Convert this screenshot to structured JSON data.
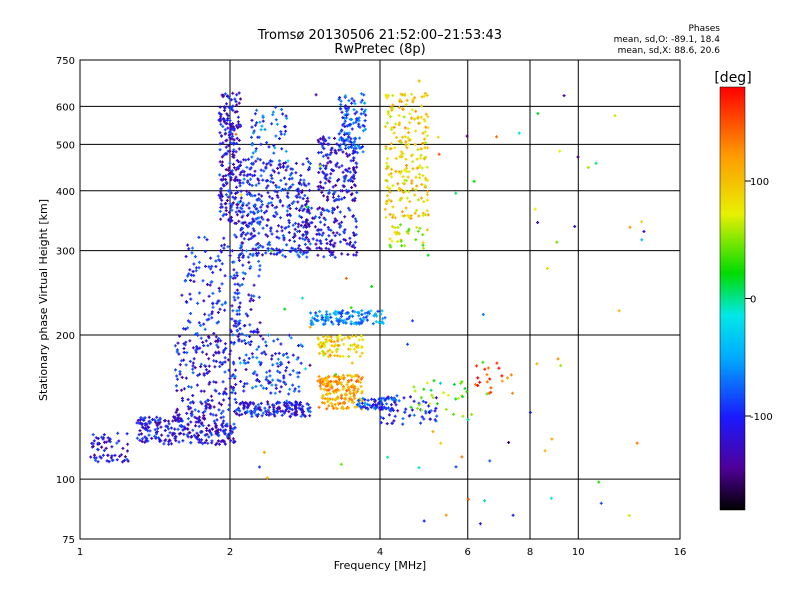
{
  "chart_data": {
    "type": "scatter",
    "title": "Tromsø 20130506 21:52:00–21:53:43",
    "subtitle": "RwPretec (8p)",
    "xlabel": "Frequency [MHz]",
    "ylabel": "Stationary phase Virtual Height [km]",
    "x_scale": "log",
    "y_scale": "log",
    "xlim": [
      1,
      16
    ],
    "ylim": [
      75,
      750
    ],
    "x_ticks": [
      1,
      2,
      4,
      6,
      8,
      10,
      16
    ],
    "y_ticks": [
      75,
      100,
      200,
      300,
      400,
      500,
      600,
      750
    ],
    "grid": true,
    "stats_header": "Phases",
    "stats_lines": [
      "mean, sd,O: -89.1, 18.4",
      "mean, sd,X: 88.6, 20.6"
    ],
    "colorbar": {
      "label": "[deg]",
      "range": [
        -180,
        180
      ],
      "ticks": [
        100,
        0,
        -100
      ],
      "colormap": "rainbow"
    },
    "point_color_note": "marker color encodes phase in degrees",
    "clusters": [
      {
        "x": [
          1.05,
          1.25
        ],
        "y": [
          108,
          125
        ],
        "phase": -110,
        "n": 60
      },
      {
        "x": [
          1.3,
          2.05
        ],
        "y": [
          118,
          135
        ],
        "phase": -110,
        "n": 260
      },
      {
        "x": [
          1.55,
          2.05
        ],
        "y": [
          135,
          200
        ],
        "phase": -105,
        "n": 180
      },
      {
        "x": [
          1.6,
          2.1
        ],
        "y": [
          200,
          320
        ],
        "phase": -100,
        "n": 120
      },
      {
        "x": [
          1.9,
          2.1
        ],
        "y": [
          340,
          640
        ],
        "phase": -110,
        "n": 230
      },
      {
        "x": [
          2.05,
          2.9
        ],
        "y": [
          135,
          145
        ],
        "phase": -105,
        "n": 160
      },
      {
        "x": [
          2.0,
          2.8
        ],
        "y": [
          150,
          200
        ],
        "phase": -90,
        "n": 130
      },
      {
        "x": [
          2.0,
          2.3
        ],
        "y": [
          200,
          360
        ],
        "phase": -100,
        "n": 90
      },
      {
        "x": [
          2.1,
          2.9
        ],
        "y": [
          290,
          470
        ],
        "phase": -100,
        "n": 360
      },
      {
        "x": [
          2.2,
          2.6
        ],
        "y": [
          470,
          600
        ],
        "phase": -80,
        "n": 50
      },
      {
        "x": [
          2.8,
          3.6
        ],
        "y": [
          290,
          370
        ],
        "phase": -110,
        "n": 140
      },
      {
        "x": [
          3.0,
          3.6
        ],
        "y": [
          380,
          520
        ],
        "phase": -110,
        "n": 170
      },
      {
        "x": [
          3.3,
          3.75
        ],
        "y": [
          480,
          640
        ],
        "phase": -80,
        "n": 110
      },
      {
        "x": [
          2.9,
          4.1
        ],
        "y": [
          210,
          225
        ],
        "phase": -60,
        "n": 120
      },
      {
        "x": [
          3.0,
          3.7
        ],
        "y": [
          180,
          200
        ],
        "phase": 90,
        "n": 80
      },
      {
        "x": [
          3.0,
          3.7
        ],
        "y": [
          140,
          165
        ],
        "phase": 110,
        "n": 180
      },
      {
        "x": [
          3.6,
          4.3
        ],
        "y": [
          140,
          148
        ],
        "phase": -90,
        "n": 60
      },
      {
        "x": [
          4.1,
          5.0
        ],
        "y": [
          350,
          640
        ],
        "phase": 90,
        "n": 220
      },
      {
        "x": [
          4.1,
          5.0
        ],
        "y": [
          300,
          340
        ],
        "phase": 60,
        "n": 30
      },
      {
        "x": [
          4.0,
          5.2
        ],
        "y": [
          130,
          150
        ],
        "phase": -100,
        "n": 60
      },
      {
        "x": [
          4.6,
          6.2
        ],
        "y": [
          135,
          160
        ],
        "phase": 40,
        "n": 30
      },
      {
        "x": [
          6.2,
          7.5
        ],
        "y": [
          150,
          175
        ],
        "phase": 150,
        "n": 20
      },
      {
        "x": [
          2.0,
          14.0
        ],
        "y": [
          80,
          700
        ],
        "phase": 0,
        "n": 90
      }
    ]
  }
}
